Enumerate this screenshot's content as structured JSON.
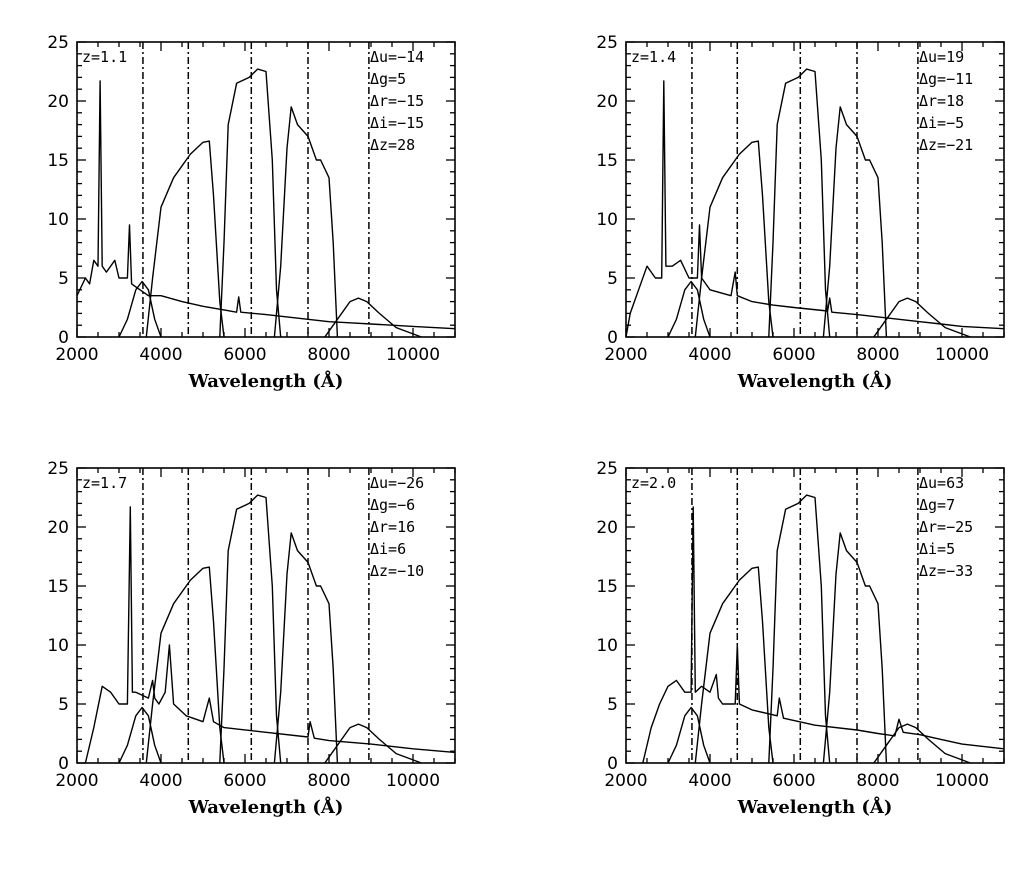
{
  "chart_data": [
    {
      "type": "line",
      "title": "z=1.1",
      "xlabel": "Wavelength (Å)",
      "ylabel": "",
      "xlim": [
        2000,
        11000
      ],
      "ylim": [
        0,
        25
      ],
      "xticks": [
        "2000",
        "4000",
        "6000",
        "8000",
        "10000"
      ],
      "yticks": [
        "0",
        "5",
        "10",
        "15",
        "20",
        "25"
      ],
      "annotations": [
        "Δu=−14",
        "Δg=5",
        "Δr=−15",
        "Δi=−15",
        "Δz=28"
      ],
      "filter_edges": [
        3570,
        4650,
        6150,
        7500,
        8950
      ],
      "series": [
        {
          "name": "u filter",
          "x": [
            3000,
            3200,
            3400,
            3550,
            3700,
            3850,
            4000
          ],
          "y": [
            0,
            1.5,
            4,
            4.7,
            4,
            1.5,
            0
          ]
        },
        {
          "name": "g filter",
          "x": [
            3650,
            3800,
            4000,
            4300,
            4700,
            5000,
            5150,
            5250,
            5400,
            5500
          ],
          "y": [
            0,
            5,
            11,
            13.5,
            15.5,
            16.5,
            16.6,
            12,
            3,
            0
          ]
        },
        {
          "name": "r filter",
          "x": [
            5400,
            5500,
            5600,
            5800,
            6100,
            6300,
            6500,
            6650,
            6750,
            6850
          ],
          "y": [
            0,
            8,
            18,
            21.5,
            22,
            22.7,
            22.5,
            15,
            4,
            0
          ]
        },
        {
          "name": "i filter",
          "x": [
            6700,
            6850,
            7000,
            7100,
            7250,
            7500,
            7700,
            7800,
            8000,
            8100,
            8200
          ],
          "y": [
            0,
            6,
            16,
            19.5,
            18,
            17,
            15,
            15,
            13.5,
            8,
            0
          ]
        },
        {
          "name": "z filter",
          "x": [
            7900,
            8200,
            8500,
            8700,
            8900,
            9200,
            9600,
            10200
          ],
          "y": [
            0,
            1.5,
            3,
            3.3,
            3,
            2,
            0.8,
            0
          ]
        },
        {
          "name": "spectrum",
          "x": [
            2000,
            2200,
            2300,
            2400,
            2500,
            2550,
            2600,
            2700,
            2900,
            3000,
            3200,
            3250,
            3300,
            3500,
            3700,
            4000,
            4500,
            5000,
            5500,
            5800,
            5850,
            5900,
            6500,
            7000,
            7500,
            8000,
            8500,
            9000,
            9500,
            10000,
            10500,
            11000
          ],
          "y": [
            3.5,
            5,
            4.5,
            6.5,
            6,
            21.7,
            6,
            5.5,
            6.5,
            5,
            5,
            9.5,
            4.5,
            4,
            3.5,
            3.5,
            3,
            2.6,
            2.3,
            2.1,
            3.4,
            2.1,
            1.9,
            1.7,
            1.5,
            1.3,
            1.2,
            1.1,
            1,
            0.9,
            0.8,
            0.7
          ]
        }
      ]
    },
    {
      "type": "line",
      "title": "z=1.4",
      "xlabel": "Wavelength (Å)",
      "ylabel": "",
      "xlim": [
        2000,
        11000
      ],
      "ylim": [
        0,
        25
      ],
      "xticks": [
        "2000",
        "4000",
        "6000",
        "8000",
        "10000"
      ],
      "yticks": [
        "0",
        "5",
        "10",
        "15",
        "20",
        "25"
      ],
      "annotations": [
        "Δu=19",
        "Δg=−11",
        "Δr=18",
        "Δi=−5",
        "Δz=−21"
      ],
      "filter_edges": [
        3570,
        4650,
        6150,
        7500,
        8950
      ],
      "series": [
        {
          "name": "u filter",
          "x": [
            3000,
            3200,
            3400,
            3550,
            3700,
            3850,
            4000
          ],
          "y": [
            0,
            1.5,
            4,
            4.7,
            4,
            1.5,
            0
          ]
        },
        {
          "name": "g filter",
          "x": [
            3650,
            3800,
            4000,
            4300,
            4700,
            5000,
            5150,
            5250,
            5400,
            5500
          ],
          "y": [
            0,
            5,
            11,
            13.5,
            15.5,
            16.5,
            16.6,
            12,
            3,
            0
          ]
        },
        {
          "name": "r filter",
          "x": [
            5400,
            5500,
            5600,
            5800,
            6100,
            6300,
            6500,
            6650,
            6750,
            6850
          ],
          "y": [
            0,
            8,
            18,
            21.5,
            22,
            22.7,
            22.5,
            15,
            4,
            0
          ]
        },
        {
          "name": "i filter",
          "x": [
            6700,
            6850,
            7000,
            7100,
            7250,
            7500,
            7700,
            7800,
            8000,
            8100,
            8200
          ],
          "y": [
            0,
            6,
            16,
            19.5,
            18,
            17,
            15,
            15,
            13.5,
            8,
            0
          ]
        },
        {
          "name": "z filter",
          "x": [
            7900,
            8200,
            8500,
            8700,
            8900,
            9200,
            9600,
            10200
          ],
          "y": [
            0,
            1.5,
            3,
            3.3,
            3,
            2,
            0.8,
            0
          ]
        },
        {
          "name": "spectrum",
          "x": [
            2000,
            2100,
            2300,
            2500,
            2700,
            2850,
            2900,
            2950,
            3100,
            3300,
            3500,
            3700,
            3750,
            3800,
            4000,
            4500,
            4600,
            4650,
            5000,
            5500,
            6000,
            6800,
            6850,
            6900,
            7500,
            8000,
            8500,
            9000,
            9500,
            10000,
            11000
          ],
          "y": [
            0,
            2,
            4,
            6,
            5,
            5,
            21.7,
            6,
            6,
            6.5,
            5,
            5,
            9.5,
            5,
            4,
            3.5,
            5.5,
            3.5,
            3,
            2.7,
            2.5,
            2.2,
            3.3,
            2.1,
            1.9,
            1.7,
            1.5,
            1.3,
            1.1,
            0.9,
            0.7
          ]
        }
      ]
    },
    {
      "type": "line",
      "title": "z=1.7",
      "xlabel": "Wavelength (Å)",
      "ylabel": "",
      "xlim": [
        2000,
        11000
      ],
      "ylim": [
        0,
        25
      ],
      "xticks": [
        "2000",
        "4000",
        "6000",
        "8000",
        "10000"
      ],
      "yticks": [
        "0",
        "5",
        "10",
        "15",
        "20",
        "25"
      ],
      "annotations": [
        "Δu=−26",
        "Δg=−6",
        "Δr=16",
        "Δi=6",
        "Δz=−10"
      ],
      "filter_edges": [
        3570,
        4650,
        6150,
        7500,
        8950
      ],
      "series": [
        {
          "name": "u filter",
          "x": [
            3000,
            3200,
            3400,
            3550,
            3700,
            3850,
            4000
          ],
          "y": [
            0,
            1.5,
            4,
            4.7,
            4,
            1.5,
            0
          ]
        },
        {
          "name": "g filter",
          "x": [
            3650,
            3800,
            4000,
            4300,
            4700,
            5000,
            5150,
            5250,
            5400,
            5500
          ],
          "y": [
            0,
            5,
            11,
            13.5,
            15.5,
            16.5,
            16.6,
            12,
            3,
            0
          ]
        },
        {
          "name": "r filter",
          "x": [
            5400,
            5500,
            5600,
            5800,
            6100,
            6300,
            6500,
            6650,
            6750,
            6850
          ],
          "y": [
            0,
            8,
            18,
            21.5,
            22,
            22.7,
            22.5,
            15,
            4,
            0
          ]
        },
        {
          "name": "i filter",
          "x": [
            6700,
            6850,
            7000,
            7100,
            7250,
            7500,
            7700,
            7800,
            8000,
            8100,
            8200
          ],
          "y": [
            0,
            6,
            16,
            19.5,
            18,
            17,
            15,
            15,
            13.5,
            8,
            0
          ]
        },
        {
          "name": "z filter",
          "x": [
            7900,
            8200,
            8500,
            8700,
            8900,
            9200,
            9600,
            10200
          ],
          "y": [
            0,
            1.5,
            3,
            3.3,
            3,
            2,
            0.8,
            0
          ]
        },
        {
          "name": "spectrum",
          "x": [
            2200,
            2400,
            2600,
            2800,
            3000,
            3200,
            3270,
            3320,
            3400,
            3700,
            3800,
            3850,
            3950,
            4100,
            4200,
            4300,
            4600,
            5000,
            5150,
            5250,
            5500,
            6500,
            7500,
            7550,
            7650,
            8000,
            9000,
            10000,
            11000
          ],
          "y": [
            0,
            3,
            6.5,
            6,
            5,
            5,
            21.7,
            6,
            6,
            5.5,
            7,
            5.5,
            5,
            6,
            10,
            5,
            4,
            3.5,
            5.5,
            3.5,
            3,
            2.6,
            2.2,
            3.5,
            2.1,
            1.9,
            1.6,
            1.2,
            0.9
          ]
        }
      ]
    },
    {
      "type": "line",
      "title": "z=2.0",
      "xlabel": "Wavelength (Å)",
      "ylabel": "",
      "xlim": [
        2000,
        11000
      ],
      "ylim": [
        0,
        25
      ],
      "xticks": [
        "2000",
        "4000",
        "6000",
        "8000",
        "10000"
      ],
      "yticks": [
        "0",
        "5",
        "10",
        "15",
        "20",
        "25"
      ],
      "annotations": [
        "Δu=63",
        "Δg=7",
        "Δr=−25",
        "Δi=5",
        "Δz=−33"
      ],
      "filter_edges": [
        3570,
        4650,
        6150,
        7500,
        8950
      ],
      "series": [
        {
          "name": "u filter",
          "x": [
            3000,
            3200,
            3400,
            3550,
            3700,
            3850,
            4000
          ],
          "y": [
            0,
            1.5,
            4,
            4.7,
            4,
            1.5,
            0
          ]
        },
        {
          "name": "g filter",
          "x": [
            3650,
            3800,
            4000,
            4300,
            4700,
            5000,
            5150,
            5250,
            5400,
            5500
          ],
          "y": [
            0,
            5,
            11,
            13.5,
            15.5,
            16.5,
            16.6,
            12,
            3,
            0
          ]
        },
        {
          "name": "r filter",
          "x": [
            5400,
            5500,
            5600,
            5800,
            6100,
            6300,
            6500,
            6650,
            6750,
            6850
          ],
          "y": [
            0,
            8,
            18,
            21.5,
            22,
            22.7,
            22.5,
            15,
            4,
            0
          ]
        },
        {
          "name": "i filter",
          "x": [
            6700,
            6850,
            7000,
            7100,
            7250,
            7500,
            7700,
            7800,
            8000,
            8100,
            8200
          ],
          "y": [
            0,
            6,
            16,
            19.5,
            18,
            17,
            15,
            15,
            13.5,
            8,
            0
          ]
        },
        {
          "name": "z filter",
          "x": [
            7900,
            8200,
            8500,
            8700,
            8900,
            9200,
            9600,
            10200
          ],
          "y": [
            0,
            1.5,
            3,
            3.3,
            3,
            2,
            0.8,
            0
          ]
        },
        {
          "name": "spectrum",
          "x": [
            2400,
            2600,
            2800,
            3000,
            3200,
            3400,
            3550,
            3600,
            3650,
            3800,
            4000,
            4150,
            4200,
            4300,
            4600,
            4650,
            4700,
            5000,
            5600,
            5650,
            5750,
            6500,
            7500,
            8000,
            8400,
            8500,
            8600,
            9000,
            9500,
            10000,
            11000
          ],
          "y": [
            0,
            3,
            5,
            6.5,
            7,
            6,
            6,
            21.7,
            6,
            6.5,
            6,
            7.5,
            5.5,
            5,
            5,
            10,
            5,
            4.5,
            4,
            5.5,
            3.8,
            3.2,
            2.8,
            2.5,
            2.3,
            3.7,
            2.6,
            2.4,
            2,
            1.6,
            1.2
          ]
        }
      ]
    }
  ]
}
